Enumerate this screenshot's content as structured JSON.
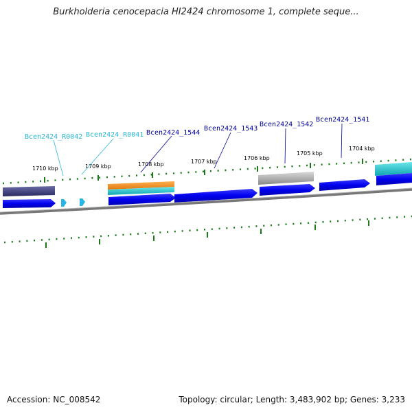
{
  "title": "Burkholderia cenocepacia HI2424 chromosome 1, complete seque...",
  "accession": "Accession: NC_008542",
  "topology": "Topology: circular; Length: 3,483,902 bp; Genes: 3,233",
  "colors": {
    "cds": "#0000ee",
    "rna": "#29b6e6",
    "label_dark": "#000099",
    "label_light": "#29b6d6",
    "tick": "#1a7a1a",
    "backbone": "#777777",
    "orange": "#f28c1e",
    "cyan": "#17c3c8",
    "navy": "#3a3a78",
    "gray": "#a8a8a8"
  },
  "kbp_labels": [
    "1710 kbp",
    "1709 kbp",
    "1708 kbp",
    "1707 kbp",
    "1706 kbp",
    "1705 kbp",
    "1704 kbp"
  ],
  "gene_labels": [
    "Bcen2424_R0042",
    "Bcen2424_R0041",
    "Bcen2424_1544",
    "Bcen2424_1543",
    "Bcen2424_1542",
    "Bcen2424_1541"
  ]
}
